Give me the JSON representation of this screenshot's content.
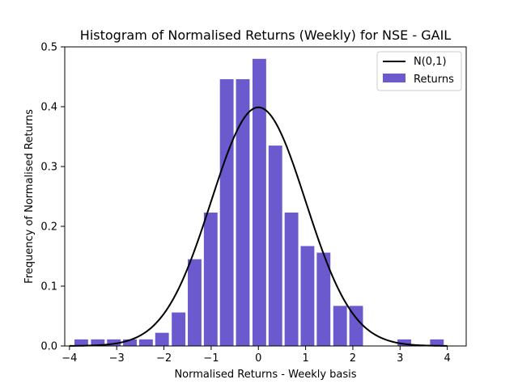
{
  "chart_data": {
    "type": "bar",
    "title": "Histogram of Normalised Returns (Weekly) for NSE - GAIL",
    "xlabel": "Normalised Returns - Weekly basis",
    "ylabel": "Frequency of Normalised Returns",
    "xlim": [
      -4.1,
      4.4
    ],
    "ylim": [
      0,
      0.5
    ],
    "xticks": [
      -4,
      -3,
      -2,
      -1,
      0,
      1,
      2,
      3,
      4
    ],
    "yticks": [
      0.0,
      0.1,
      0.2,
      0.3,
      0.4,
      0.5
    ],
    "ytick_labels": [
      "0.0",
      "0.1",
      "0.2",
      "0.3",
      "0.4",
      "0.5"
    ],
    "grid": false,
    "legend_position": "top-right",
    "bar_color": "#6a5acd",
    "line_color": "#000000",
    "series": [
      {
        "name": "Returns",
        "kind": "histogram",
        "bin_centers": [
          -3.75,
          -3.4,
          -3.06,
          -2.72,
          -2.38,
          -2.04,
          -1.69,
          -1.35,
          -1.01,
          -0.67,
          -0.33,
          0.02,
          0.36,
          0.7,
          1.04,
          1.38,
          1.73,
          2.07,
          2.41,
          2.75,
          3.09,
          3.43,
          3.78
        ],
        "bin_width": 0.34,
        "values": [
          0.011,
          0.011,
          0.011,
          0.011,
          0.011,
          0.022,
          0.056,
          0.145,
          0.223,
          0.446,
          0.446,
          0.48,
          0.335,
          0.223,
          0.167,
          0.156,
          0.067,
          0.067,
          0.0,
          0.0,
          0.011,
          0.0,
          0.011
        ]
      },
      {
        "name": "N(0,1)",
        "kind": "line",
        "x_range": [
          -4,
          4
        ],
        "function": "standard normal pdf"
      }
    ]
  }
}
